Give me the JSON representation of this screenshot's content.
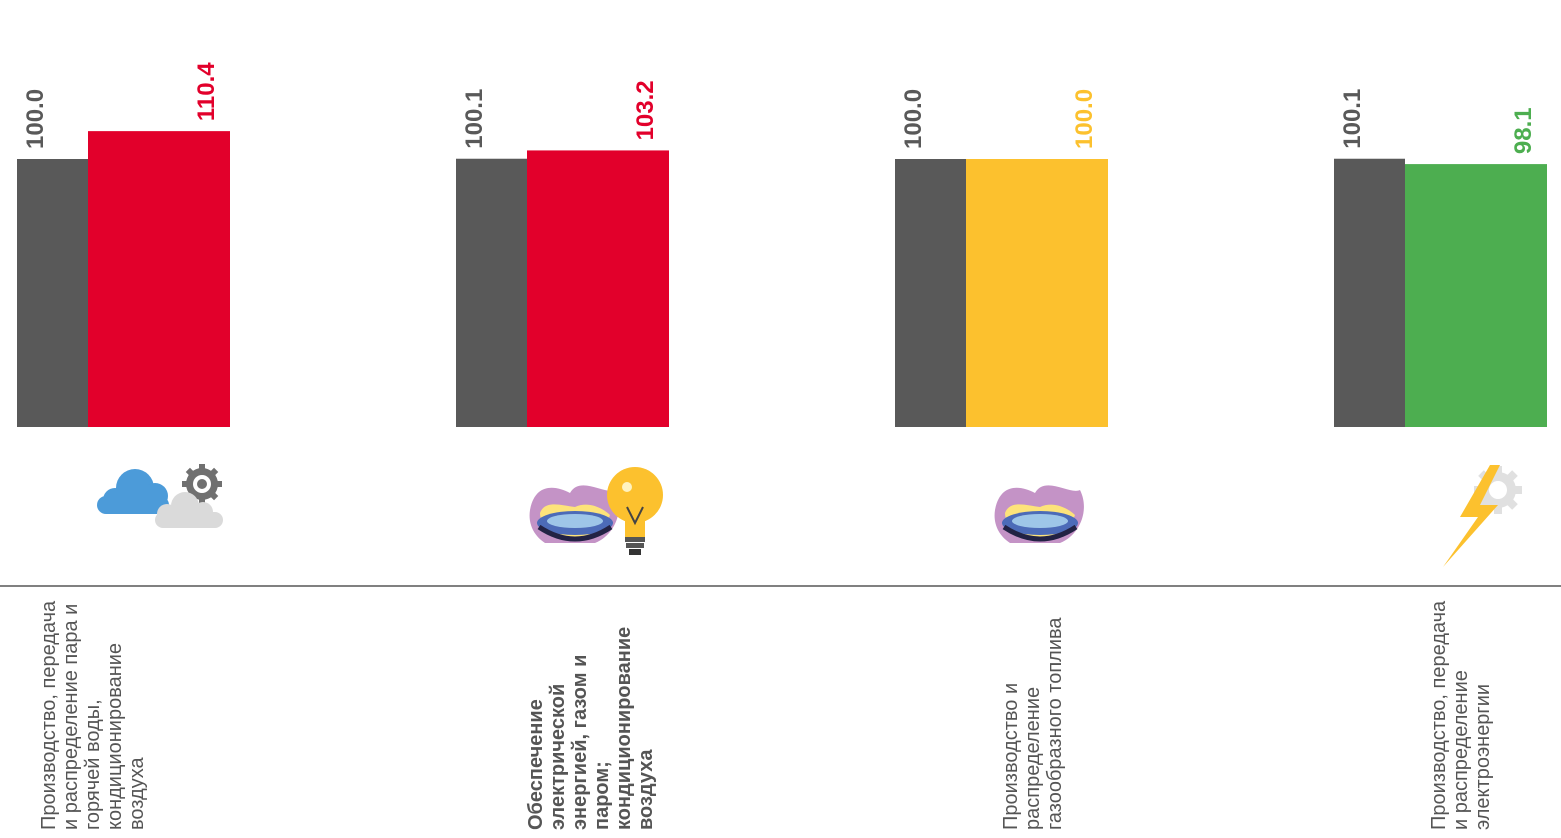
{
  "chart_data": {
    "type": "bar",
    "categories": [
      "Производство, передача и распределение пара и горячей воды, кондиционирование воздуха",
      "Обеспечение электрической энергией, газом и паром; кондиционирование воздуха",
      "Производство и распределение газообразного топлива",
      "Производство, передача и распределение электроэнергии"
    ],
    "category_bold": [
      false,
      true,
      false,
      false
    ],
    "series": [
      {
        "values": [
          100.0,
          100.1,
          100.0,
          100.1
        ],
        "value_labels": [
          "100.0",
          "100.1",
          "100.0",
          "100.1"
        ],
        "color": "#595959"
      },
      {
        "values": [
          110.4,
          103.2,
          100.0,
          98.1
        ],
        "value_labels": [
          "110.4",
          "103.2",
          "100.0",
          "98.1"
        ],
        "colors": [
          "#E2002B",
          "#E2002B",
          "#FCC12E",
          "#4DAE50"
        ]
      }
    ],
    "baseline_color": "#808080",
    "label_colors": {
      "first_series": "#595959"
    },
    "icons": [
      "cloud-gear-icon",
      "gas-flame-bulb-icon",
      "gas-flame-icon",
      "lightning-gear-icon"
    ]
  }
}
